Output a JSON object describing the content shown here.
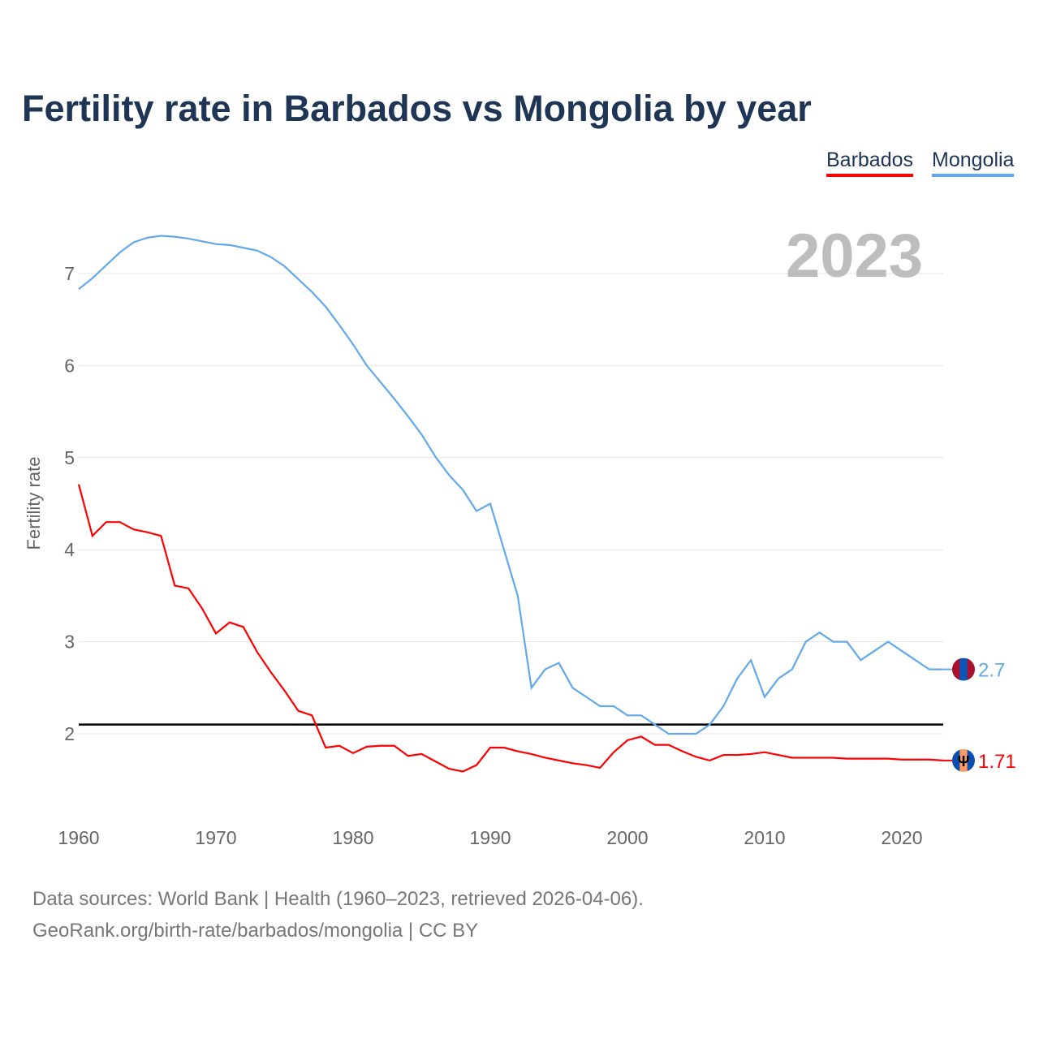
{
  "title": "Fertility rate in Barbados vs Mongolia by year",
  "current_year": "2023",
  "footer": {
    "line1": "Data sources: World Bank | Health (1960–2023, retrieved 2026-04-06).",
    "line2": "GeoRank.org/birth-rate/barbados/mongolia | CC BY"
  },
  "chart_data": {
    "type": "line",
    "title": "Fertility rate in Barbados vs Mongolia by year",
    "xlabel": "",
    "ylabel": "Fertility rate",
    "xlim": [
      1960,
      2023
    ],
    "ylim": [
      1.2,
      7.6
    ],
    "xticks": [
      1960,
      1970,
      1980,
      1990,
      2000,
      2010,
      2020
    ],
    "yticks": [
      2,
      3,
      4,
      5,
      6,
      7
    ],
    "grid": true,
    "legend_position": "top-right",
    "reference_line": 2.1,
    "x": [
      1960,
      1961,
      1962,
      1963,
      1964,
      1965,
      1966,
      1967,
      1968,
      1969,
      1970,
      1971,
      1972,
      1973,
      1974,
      1975,
      1976,
      1977,
      1978,
      1979,
      1980,
      1981,
      1982,
      1983,
      1984,
      1985,
      1986,
      1987,
      1988,
      1989,
      1990,
      1991,
      1992,
      1993,
      1994,
      1995,
      1996,
      1997,
      1998,
      1999,
      2000,
      2001,
      2002,
      2003,
      2004,
      2005,
      2006,
      2007,
      2008,
      2009,
      2010,
      2011,
      2012,
      2013,
      2014,
      2015,
      2016,
      2017,
      2018,
      2019,
      2020,
      2021,
      2022,
      2023
    ],
    "series": [
      {
        "name": "Barbados",
        "color": "#ff0000",
        "end_label": "1.71",
        "flag": "barbados-flag-icon",
        "values": [
          4.71,
          4.15,
          4.3,
          4.3,
          4.22,
          4.19,
          4.15,
          3.61,
          3.58,
          3.36,
          3.09,
          3.21,
          3.16,
          2.89,
          2.67,
          2.47,
          2.25,
          2.2,
          1.85,
          1.87,
          1.79,
          1.86,
          1.87,
          1.87,
          1.76,
          1.78,
          1.7,
          1.62,
          1.59,
          1.66,
          1.85,
          1.85,
          1.81,
          1.78,
          1.74,
          1.71,
          1.68,
          1.66,
          1.63,
          1.8,
          1.93,
          1.97,
          1.88,
          1.88,
          1.81,
          1.75,
          1.71,
          1.77,
          1.77,
          1.78,
          1.8,
          1.77,
          1.74,
          1.74,
          1.74,
          1.74,
          1.73,
          1.73,
          1.73,
          1.73,
          1.72,
          1.72,
          1.72,
          1.71
        ]
      },
      {
        "name": "Mongolia",
        "color": "#62a8ea",
        "end_label": "2.7",
        "flag": "mongolia-flag-icon",
        "values": [
          6.83,
          6.95,
          7.09,
          7.23,
          7.34,
          7.39,
          7.41,
          7.4,
          7.38,
          7.35,
          7.32,
          7.31,
          7.28,
          7.25,
          7.18,
          7.08,
          6.94,
          6.8,
          6.64,
          6.44,
          6.23,
          6.0,
          5.82,
          5.64,
          5.45,
          5.25,
          5.01,
          4.81,
          4.65,
          4.42,
          4.5,
          4.0,
          3.5,
          2.5,
          2.7,
          2.77,
          2.5,
          2.4,
          2.3,
          2.3,
          2.2,
          2.2,
          2.1,
          2.0,
          2.0,
          2.0,
          2.1,
          2.3,
          2.6,
          2.8,
          2.4,
          2.6,
          2.7,
          3.0,
          3.1,
          3.0,
          3.0,
          2.8,
          2.9,
          3.0,
          2.9,
          2.8,
          2.7,
          2.7
        ]
      }
    ]
  }
}
